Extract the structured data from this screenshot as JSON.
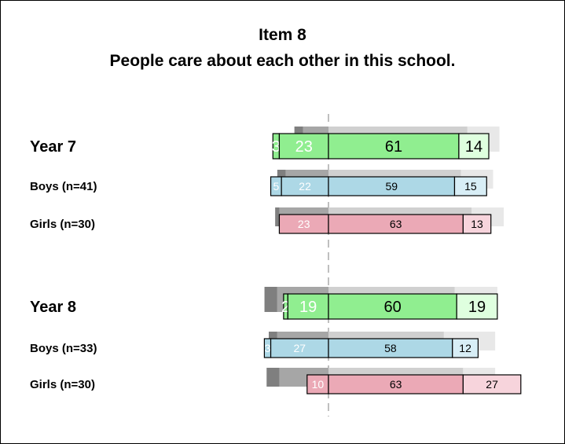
{
  "chart_data": {
    "type": "bar",
    "subtype": "diverging-stacked-bar",
    "title": "Item 8",
    "subtitle": "People care about each other in this school.",
    "rows": [
      {
        "label": "Year 7",
        "group": true,
        "neg_strong": 3,
        "neg": 23,
        "pos": 61,
        "pos_strong": 14,
        "color": "#90ee90",
        "strong_color": "#dfffdf",
        "shadow": [
          4,
          9,
          65,
          15
        ]
      },
      {
        "label": "Boys (n=41)",
        "group": false,
        "neg_strong": 5,
        "neg": 22,
        "pos": 59,
        "pos_strong": 15,
        "color": "#add8e6",
        "strong_color": "#d8eef6",
        "shadow": [
          4,
          17,
          62,
          15
        ]
      },
      {
        "label": "Girls (n=30)",
        "group": false,
        "neg_strong": 0,
        "neg": 23,
        "pos": 63,
        "pos_strong": 13,
        "color": "#eba9b6",
        "strong_color": "#f7d4dc",
        "shadow": [
          2,
          20,
          67,
          15
        ]
      },
      {
        "label": "Year 8",
        "group": true,
        "neg_strong": 2,
        "neg": 19,
        "pos": 60,
        "pos_strong": 19,
        "color": "#90ee90",
        "strong_color": "#dfffdf",
        "shadow": [
          6,
          21,
          59,
          20
        ]
      },
      {
        "label": "Boys (n=33)",
        "group": false,
        "neg_strong": 3,
        "neg": 27,
        "pos": 58,
        "pos_strong": 12,
        "color": "#add8e6",
        "strong_color": "#d8eef6",
        "shadow": [
          4,
          21,
          54,
          24
        ]
      },
      {
        "label": "Girls (n=30)",
        "group": false,
        "neg_strong": 0,
        "neg": 10,
        "pos": 63,
        "pos_strong": 27,
        "color": "#eba9b6",
        "strong_color": "#f7d4dc",
        "shadow": [
          6,
          20,
          63,
          15
        ]
      }
    ]
  },
  "colors": {
    "shadow_neg_strong": "#7f7f7f",
    "shadow_neg": "#a6a6a6",
    "shadow_pos": "#d0d0d0",
    "shadow_pos_strong": "#e8e8e8",
    "axis_line": "#aaaaaa"
  }
}
